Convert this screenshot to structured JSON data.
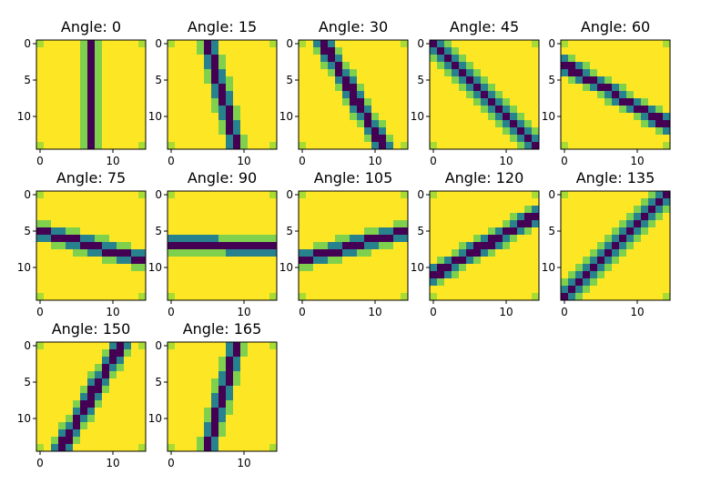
{
  "chart_data": {
    "type": "heatmap",
    "description_of_layout": "3x5 grid of image panels (12 used)",
    "grid_size": 15,
    "colormap": "viridis",
    "value_range": [
      0,
      1
    ],
    "line_pixel_values": {
      "core": 0.0,
      "inner_edge": 0.45,
      "outer_edge": 0.8,
      "background": 1.0
    },
    "x_ticks": [
      0,
      10
    ],
    "y_ticks": [
      0,
      5,
      10
    ],
    "panels": [
      {
        "title": "Angle: 0",
        "angle": 0
      },
      {
        "title": "Angle: 15",
        "angle": 15
      },
      {
        "title": "Angle: 30",
        "angle": 30
      },
      {
        "title": "Angle: 45",
        "angle": 45
      },
      {
        "title": "Angle: 60",
        "angle": 60
      },
      {
        "title": "Angle: 75",
        "angle": 75
      },
      {
        "title": "Angle: 90",
        "angle": 90
      },
      {
        "title": "Angle: 105",
        "angle": 105
      },
      {
        "title": "Angle: 120",
        "angle": 120
      },
      {
        "title": "Angle: 135",
        "angle": 135
      },
      {
        "title": "Angle: 150",
        "angle": 150
      },
      {
        "title": "Angle: 165",
        "angle": 165
      }
    ]
  }
}
